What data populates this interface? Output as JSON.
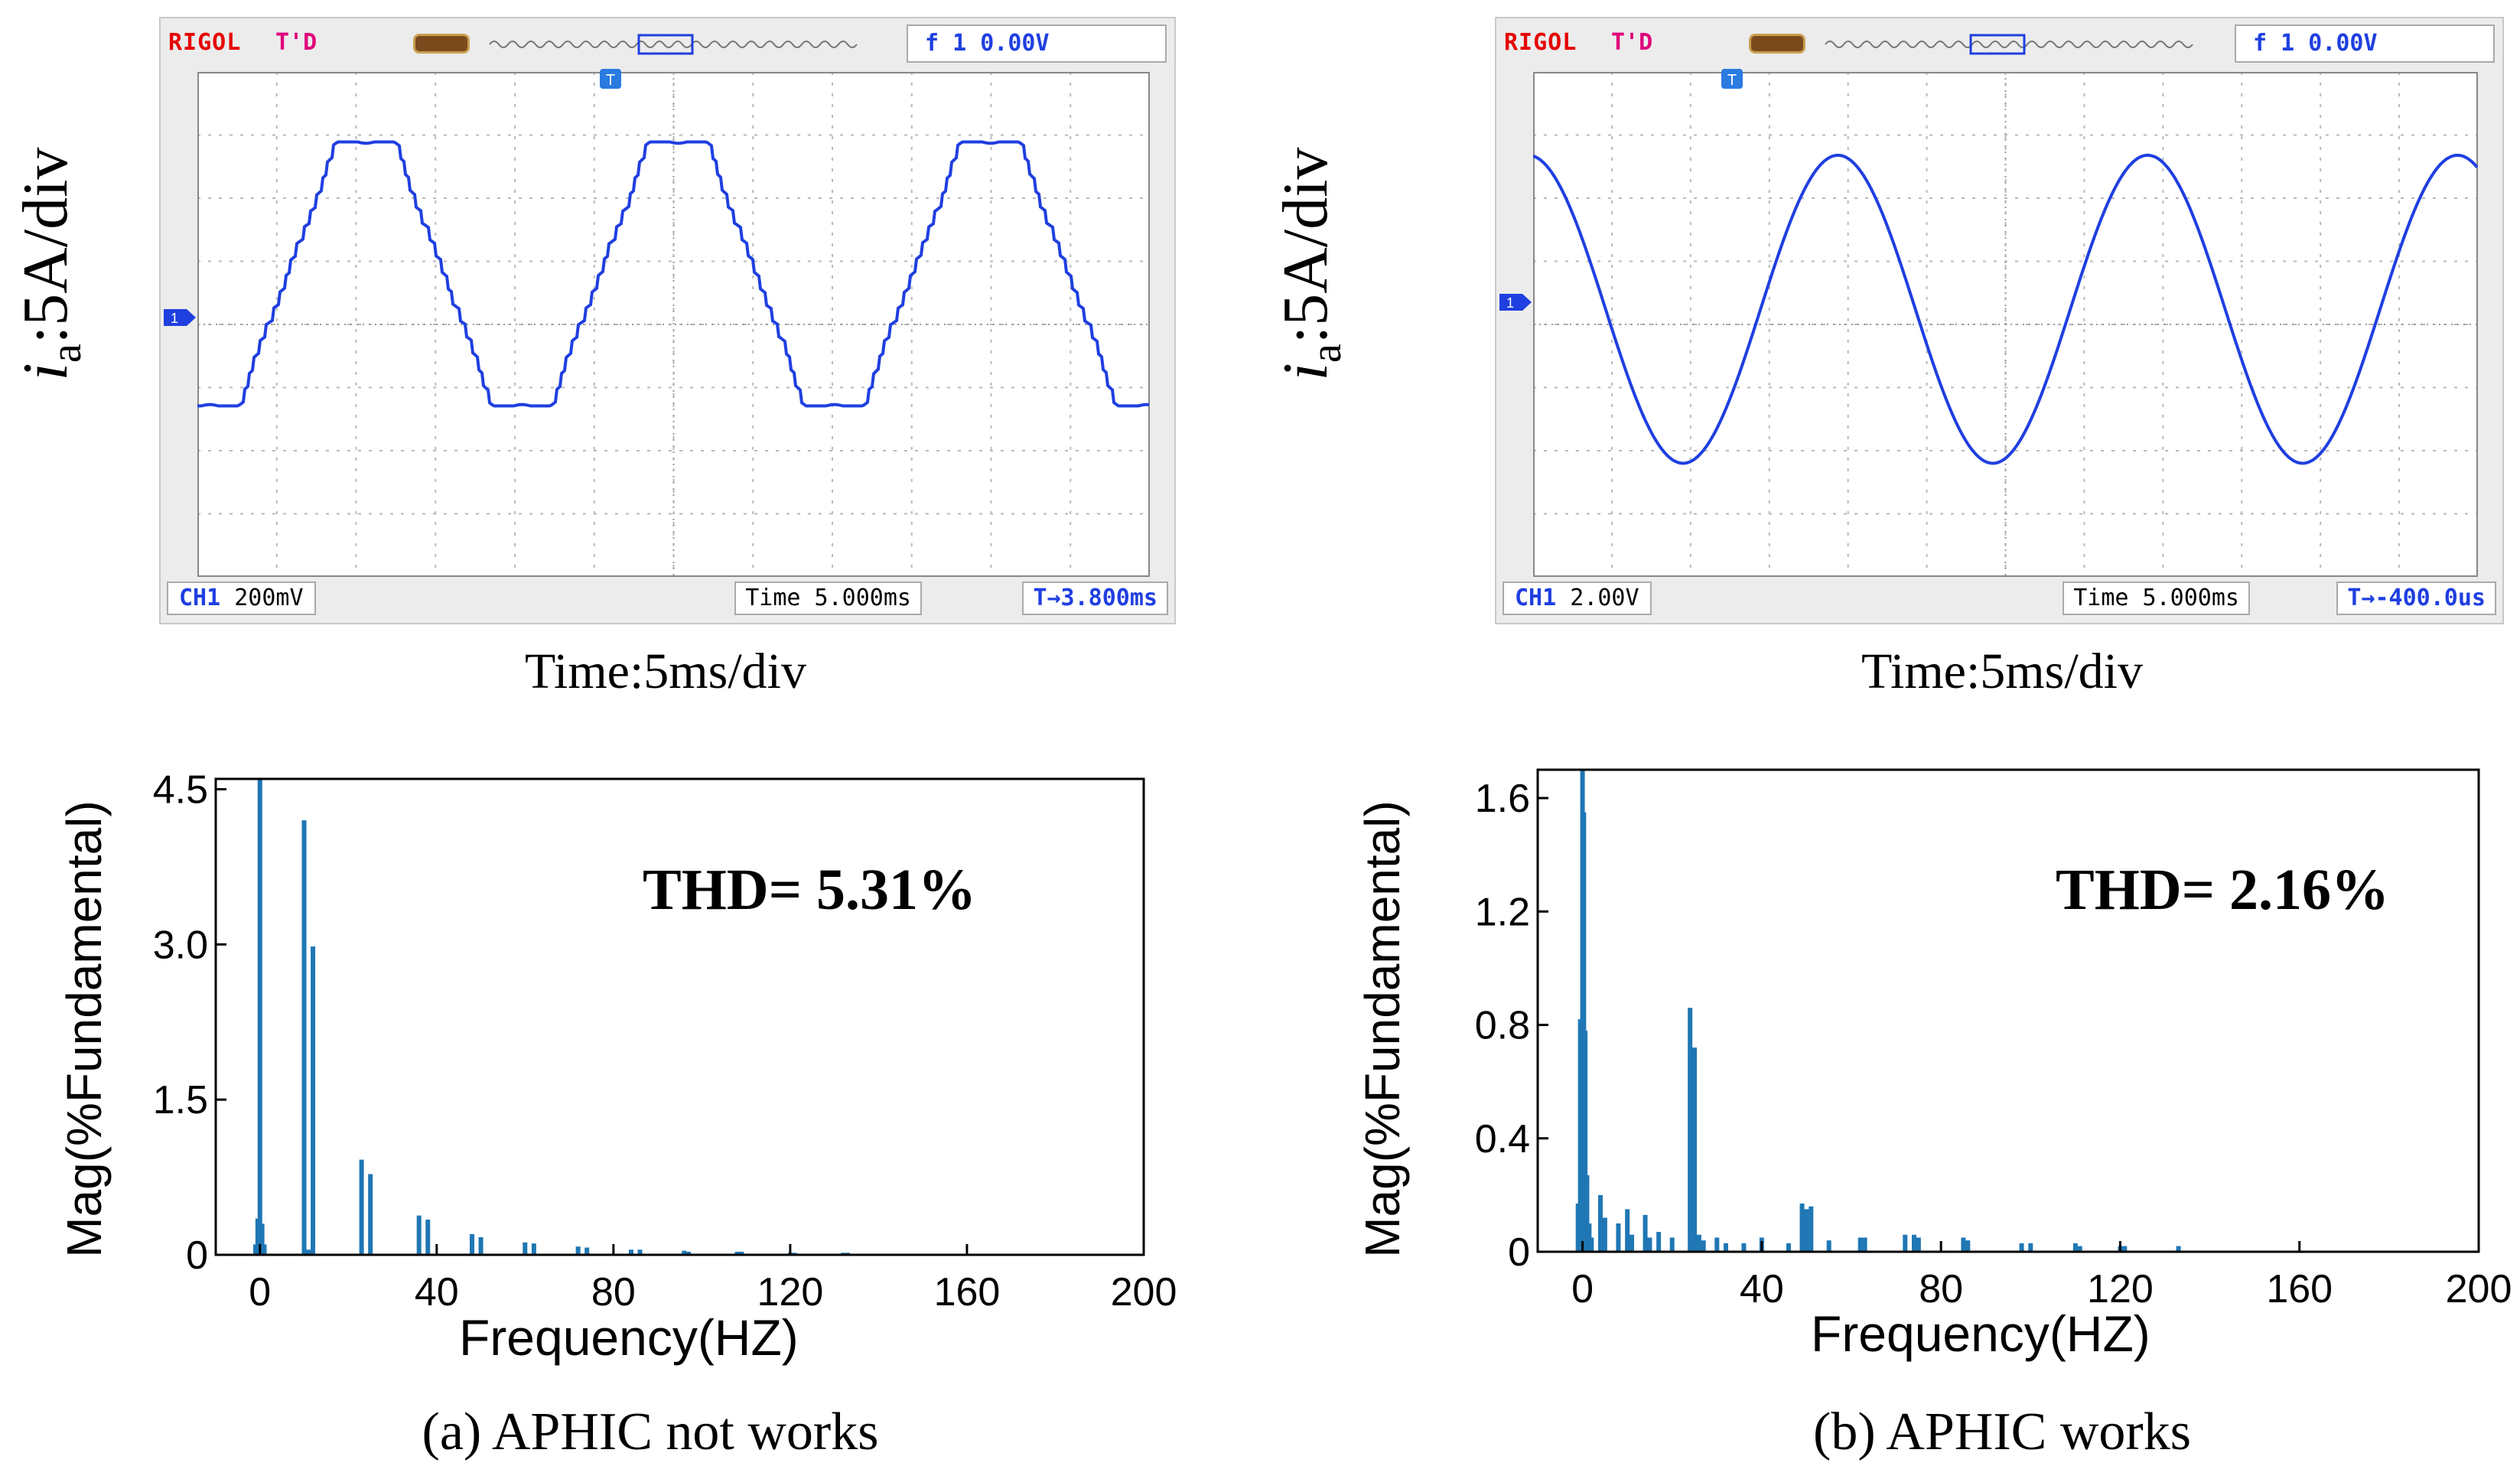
{
  "panels": [
    {
      "scope": {
        "brand": "RIGOL",
        "mode": "T'D",
        "trigger_text": "f 1 0.00V",
        "channel_label": "CH1",
        "channel_scale": "200mV",
        "timebase": "Time 5.000ms",
        "trigger_position": "T→3.800ms"
      },
      "ylabel_main": "i",
      "ylabel_sub": "a",
      "ylabel_rest": ":5A/div",
      "time_caption": "Time:5ms/div",
      "thd": "THD= 5.31%",
      "caption": "(a) APHIC not works"
    },
    {
      "scope": {
        "brand": "RIGOL",
        "mode": "T'D",
        "trigger_text": "f 1 0.00V",
        "channel_label": "CH1",
        "channel_scale": "2.00V",
        "timebase": "Time 5.000ms",
        "trigger_position": "T→-400.0us"
      },
      "ylabel_main": "i",
      "ylabel_sub": "a",
      "ylabel_rest": ":5A/div",
      "time_caption": "Time:5ms/div",
      "thd": "THD= 2.16%",
      "caption": "(b) APHIC works"
    }
  ],
  "colors": {
    "trace": "#1f3fe0",
    "bar": "#1f77b4",
    "grid": "#b8b8b8"
  },
  "chart_data": [
    {
      "type": "bar",
      "title": "",
      "xlabel": "Frequency(HZ)",
      "ylabel": "Mag(%Fundamental)",
      "xlim": [
        -10,
        200
      ],
      "ylim": [
        0,
        4.6
      ],
      "xticks": [
        0,
        40,
        80,
        120,
        160,
        200
      ],
      "xtick_labels": [
        "0",
        "40",
        "80",
        "120",
        "160",
        "200"
      ],
      "yticks": [
        0,
        1.5,
        3.0,
        4.5
      ],
      "ytick_labels": [
        "0",
        "1.5",
        "3.0",
        "4.5"
      ],
      "x": [
        -1,
        -0.5,
        0,
        0.5,
        1,
        10,
        11,
        12,
        23,
        25,
        36,
        38,
        48,
        50,
        60,
        62,
        72,
        74,
        84,
        86,
        96,
        97,
        108,
        109,
        120,
        121,
        132,
        133,
        144
      ],
      "values": [
        0.1,
        0.35,
        4.6,
        0.3,
        0.1,
        4.2,
        0.05,
        2.98,
        0.92,
        0.78,
        0.38,
        0.34,
        0.2,
        0.17,
        0.12,
        0.11,
        0.08,
        0.07,
        0.05,
        0.05,
        0.04,
        0.03,
        0.03,
        0.03,
        0.02,
        0.02,
        0.02,
        0.02,
        0.01
      ]
    },
    {
      "type": "bar",
      "title": "",
      "xlabel": "Frequency(HZ)",
      "ylabel": "Mag(%Fundamental)",
      "xlim": [
        -10,
        200
      ],
      "ylim": [
        0,
        1.7
      ],
      "xticks": [
        0,
        40,
        80,
        120,
        160,
        200
      ],
      "xtick_labels": [
        "0",
        "40",
        "80",
        "120",
        "160",
        "200"
      ],
      "yticks": [
        0,
        0.4,
        0.8,
        1.2,
        1.6
      ],
      "ytick_labels": [
        "0",
        "0.4",
        "0.8",
        "1.2",
        "1.6"
      ],
      "x": [
        -1,
        -0.5,
        0,
        0.3,
        0.6,
        1,
        1.5,
        2,
        4,
        5,
        8,
        10,
        11,
        14,
        15,
        17,
        20,
        24,
        25,
        26,
        27,
        30,
        32,
        36,
        40,
        46,
        49,
        50,
        51,
        55,
        62,
        63,
        72,
        74,
        75,
        85,
        86,
        98,
        100,
        110,
        111,
        120,
        121,
        133
      ],
      "values": [
        0.17,
        0.82,
        1.7,
        1.55,
        0.78,
        0.27,
        0.1,
        0.05,
        0.2,
        0.12,
        0.1,
        0.15,
        0.06,
        0.13,
        0.05,
        0.07,
        0.05,
        0.86,
        0.72,
        0.06,
        0.04,
        0.05,
        0.03,
        0.03,
        0.05,
        0.03,
        0.17,
        0.15,
        0.16,
        0.04,
        0.05,
        0.05,
        0.06,
        0.06,
        0.05,
        0.05,
        0.04,
        0.03,
        0.03,
        0.03,
        0.02,
        0.02,
        0.02,
        0.02
      ]
    }
  ]
}
